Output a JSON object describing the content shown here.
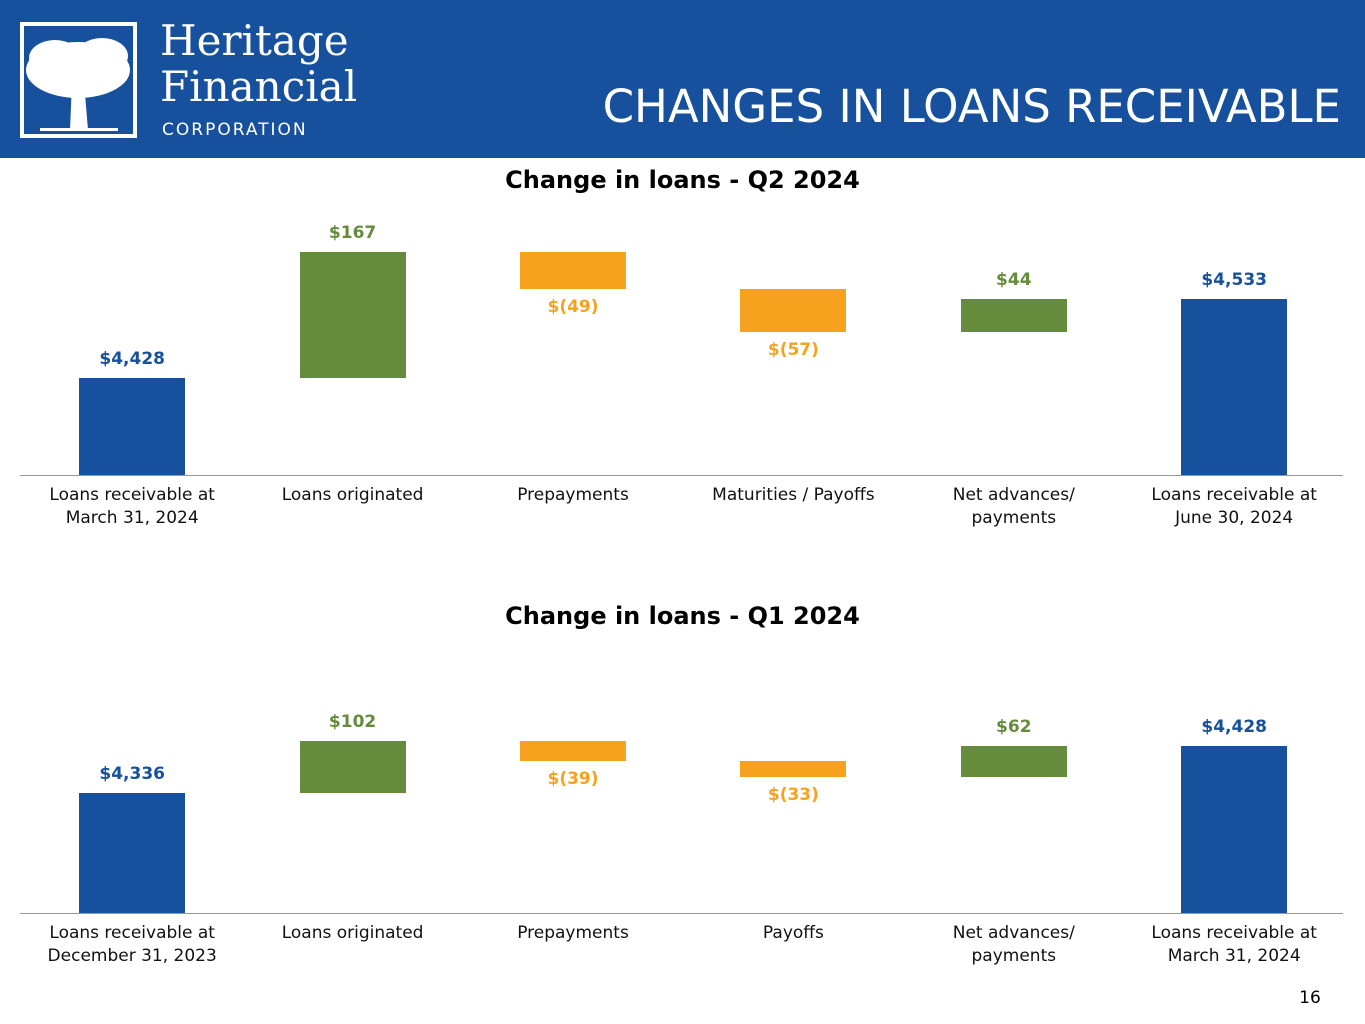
{
  "header": {
    "company": [
      "Heritage",
      "Financial"
    ],
    "company_sub": "CORPORATION",
    "title": "CHANGES IN LOANS RECEIVABLE"
  },
  "chart_data": [
    {
      "type": "waterfall",
      "title": "Change in loans - Q2 2024",
      "categories": [
        "Loans receivable at\nMarch 31, 2024",
        "Loans originated",
        "Prepayments",
        "Maturities / Payoffs",
        "Net advances/\npayments",
        "Loans receivable at\nJune 30, 2024"
      ],
      "values": [
        4428,
        167,
        -49,
        -57,
        44,
        4533
      ],
      "value_labels": [
        "$4,428",
        "$167",
        "$(49)",
        "$(57)",
        "$44",
        "$4,533"
      ],
      "measure": [
        "absolute",
        "relative",
        "relative",
        "relative",
        "relative",
        "absolute"
      ],
      "colors": {
        "absolute": "#17509c",
        "increase": "#658b3d",
        "decrease": "#f6a21e"
      },
      "ylim": [
        4300,
        4650
      ]
    },
    {
      "type": "waterfall",
      "title": "Change in loans - Q1 2024",
      "categories": [
        "Loans receivable at\nDecember 31, 2023",
        "Loans originated",
        "Prepayments",
        "Payoffs",
        "Net advances/\npayments",
        "Loans receivable at\nMarch 31, 2024"
      ],
      "values": [
        4336,
        102,
        -39,
        -33,
        62,
        4428
      ],
      "value_labels": [
        "$4,336",
        "$102",
        "$(39)",
        "$(33)",
        "$62",
        "$4,428"
      ],
      "measure": [
        "absolute",
        "relative",
        "relative",
        "relative",
        "relative",
        "absolute"
      ],
      "colors": {
        "absolute": "#17509c",
        "increase": "#658b3d",
        "decrease": "#f6a21e"
      },
      "ylim": [
        4100,
        4620
      ]
    }
  ],
  "page_number": "16"
}
